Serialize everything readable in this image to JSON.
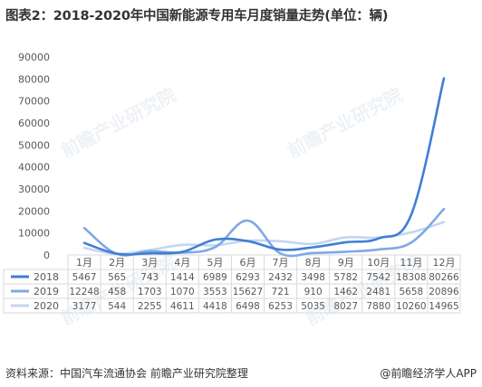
{
  "title": "图表2：2018-2020年中国新能源专用车月度销量走势(单位：辆)",
  "source": "资料来源：中国汽车流通协会 前瞻产业研究院整理",
  "brand": "@前瞻经济学人APP",
  "watermark": "前瞻产业研究院",
  "chart_data": {
    "type": "line",
    "categories": [
      "1月",
      "2月",
      "3月",
      "4月",
      "5月",
      "6月",
      "7月",
      "8月",
      "9月",
      "10月",
      "11月",
      "12月"
    ],
    "ylim": [
      0,
      90000
    ],
    "yticks": [
      "0",
      "10000",
      "20000",
      "30000",
      "40000",
      "50000",
      "60000",
      "70000",
      "80000",
      "90000"
    ],
    "grid": false,
    "legend": "data-table-below",
    "series": [
      {
        "name": "2018",
        "color": "#3f7fd3",
        "values": [
          5467,
          565,
          743,
          1414,
          6989,
          6293,
          2432,
          3498,
          5782,
          7542,
          18308,
          80266
        ]
      },
      {
        "name": "2019",
        "color": "#7fa8e6",
        "values": [
          12248,
          458,
          1703,
          1070,
          3553,
          15627,
          721,
          910,
          1462,
          2481,
          5658,
          20896
        ]
      },
      {
        "name": "2020",
        "color": "#c3d6f2",
        "values": [
          3177,
          544,
          2255,
          4611,
          4418,
          6498,
          6253,
          5035,
          8027,
          7880,
          10260,
          14965
        ]
      }
    ]
  }
}
